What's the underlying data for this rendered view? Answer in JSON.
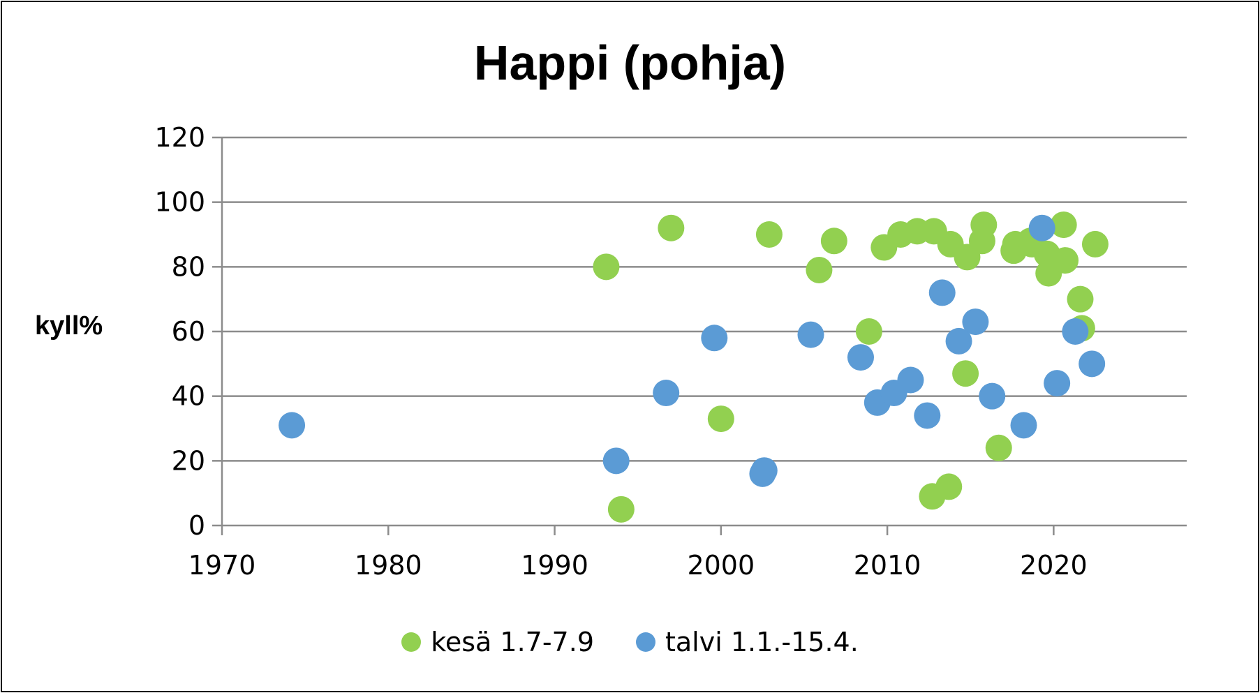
{
  "chart_data": {
    "type": "scatter",
    "title": "Happi (pohja)",
    "xlabel": "",
    "ylabel": "kyll%",
    "xlim": [
      1970,
      2028
    ],
    "ylim": [
      0,
      120
    ],
    "xticks": [
      1970,
      1980,
      1990,
      2000,
      2010,
      2020
    ],
    "yticks": [
      0,
      20,
      40,
      60,
      80,
      100,
      120
    ],
    "grid": "horizontal",
    "legend": "bottom",
    "series": [
      {
        "name": "kesä 1.7-7.9",
        "color": "#92d050",
        "points": [
          [
            1993.1,
            80
          ],
          [
            1994.0,
            5
          ],
          [
            1997.0,
            92
          ],
          [
            2000.0,
            33
          ],
          [
            2002.9,
            90
          ],
          [
            2005.9,
            79
          ],
          [
            2006.8,
            88
          ],
          [
            2008.9,
            60
          ],
          [
            2009.8,
            86
          ],
          [
            2010.8,
            90
          ],
          [
            2011.8,
            91
          ],
          [
            2012.7,
            9
          ],
          [
            2012.8,
            91
          ],
          [
            2013.7,
            12
          ],
          [
            2013.8,
            87
          ],
          [
            2014.7,
            47
          ],
          [
            2014.8,
            83
          ],
          [
            2015.7,
            88
          ],
          [
            2015.8,
            93
          ],
          [
            2016.7,
            24
          ],
          [
            2017.6,
            85
          ],
          [
            2017.7,
            87
          ],
          [
            2018.6,
            88
          ],
          [
            2018.7,
            87
          ],
          [
            2019.6,
            84
          ],
          [
            2019.7,
            78
          ],
          [
            2020.6,
            93
          ],
          [
            2020.7,
            82
          ],
          [
            2021.6,
            70
          ],
          [
            2021.7,
            61
          ],
          [
            2022.5,
            87
          ]
        ]
      },
      {
        "name": "talvi 1.1.-15.4.",
        "color": "#5b9bd5",
        "points": [
          [
            1974.2,
            31
          ],
          [
            1993.7,
            20
          ],
          [
            1996.7,
            41
          ],
          [
            1999.6,
            58
          ],
          [
            2002.5,
            16
          ],
          [
            2002.6,
            17
          ],
          [
            2005.4,
            59
          ],
          [
            2008.4,
            52
          ],
          [
            2009.4,
            38
          ],
          [
            2010.4,
            41
          ],
          [
            2011.4,
            45
          ],
          [
            2012.4,
            34
          ],
          [
            2013.3,
            72
          ],
          [
            2014.3,
            57
          ],
          [
            2015.3,
            63
          ],
          [
            2016.3,
            40
          ],
          [
            2018.2,
            31
          ],
          [
            2019.3,
            92
          ],
          [
            2020.2,
            44
          ],
          [
            2021.3,
            60
          ],
          [
            2022.3,
            50
          ]
        ]
      }
    ]
  }
}
